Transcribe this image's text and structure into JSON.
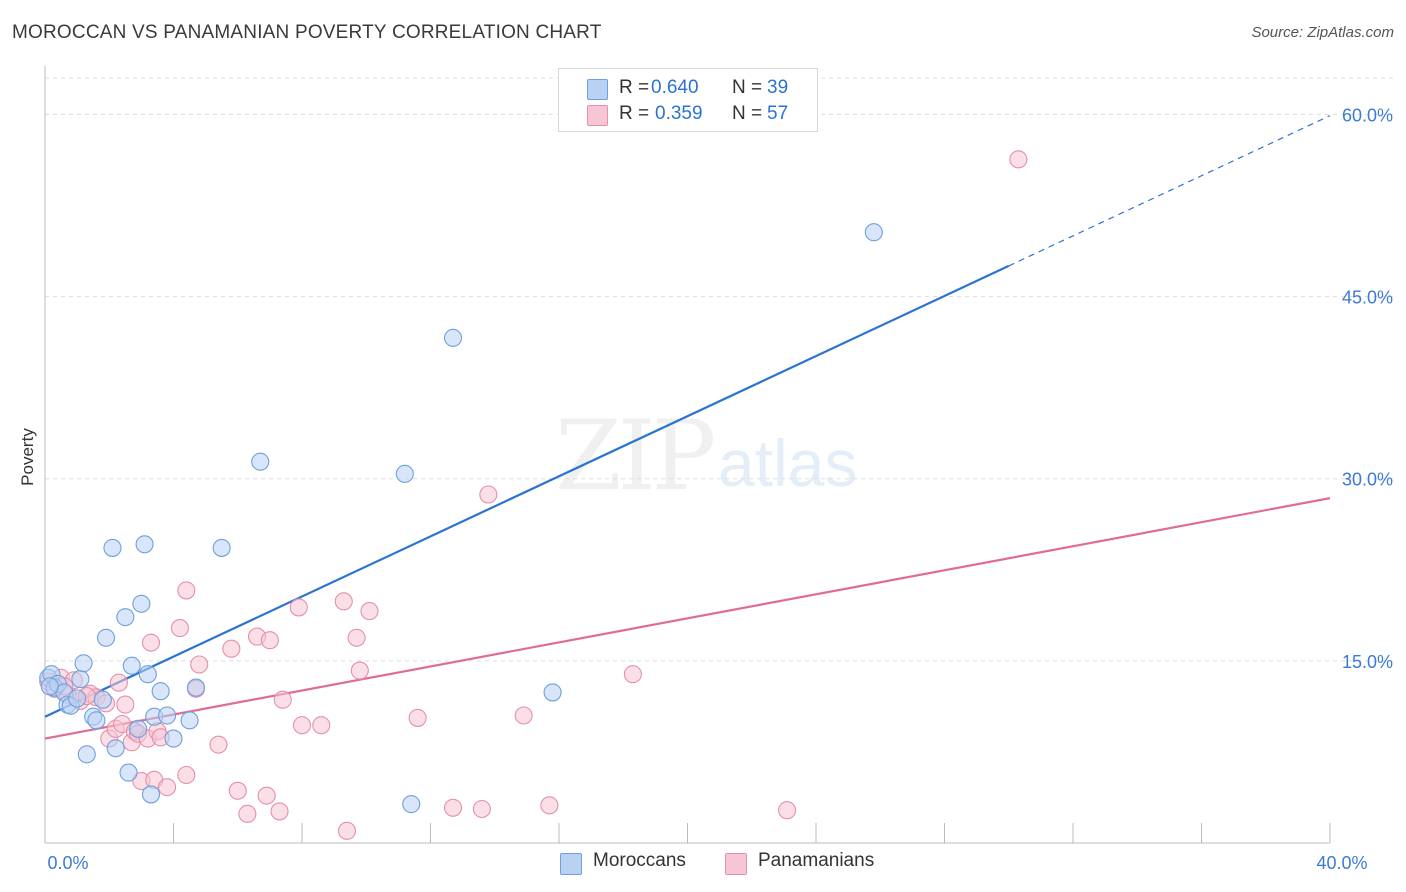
{
  "header": {
    "title": "MOROCCAN VS PANAMANIAN POVERTY CORRELATION CHART",
    "source": "Source: ZipAtlas.com"
  },
  "watermark": {
    "zip": "ZIP",
    "atlas": "atlas"
  },
  "legend": {
    "rows": [
      {
        "r_label": "R =",
        "r_value": "0.640",
        "n_label": "N =",
        "n_value": "39"
      },
      {
        "r_label": "R =",
        "r_value": "0.359",
        "n_label": "N =",
        "n_value": "57"
      }
    ]
  },
  "bottom_legend": {
    "moroccans": "Moroccans",
    "panamanians": "Panamanians"
  },
  "colors": {
    "blue_fill": "#b9d2f4",
    "blue_stroke": "#6f9fdc",
    "blue_line": "#2a74d0",
    "pink_fill": "#f7c5d4",
    "pink_stroke": "#e58fab",
    "pink_line": "#e06c94",
    "tick_label": "#3d7ad6",
    "grid": "#dddddd"
  },
  "chart_data": {
    "type": "scatter",
    "title": "MOROCCAN VS PANAMANIAN POVERTY CORRELATION CHART",
    "xlabel": "",
    "ylabel": "Poverty",
    "xlim": [
      0,
      40
    ],
    "ylim": [
      0,
      63
    ],
    "x_tick_labels": [
      {
        "value": 0,
        "label": "0.0%"
      },
      {
        "value": 40,
        "label": "40.0%"
      }
    ],
    "y_tick_labels": [
      {
        "value": 15,
        "label": "15.0%"
      },
      {
        "value": 30,
        "label": "30.0%"
      },
      {
        "value": 45,
        "label": "45.0%"
      },
      {
        "value": 60,
        "label": "60.0%"
      }
    ],
    "series": [
      {
        "name": "Moroccans",
        "r": 0.64,
        "n": 39,
        "trend": {
          "x_start": 0,
          "y_start": 10.4,
          "x_end": 40,
          "y_end": 59.9,
          "solid_until_x": 30
        },
        "points": [
          [
            0.1,
            13.6
          ],
          [
            0.2,
            13.9
          ],
          [
            0.3,
            12.8
          ],
          [
            0.4,
            13.1
          ],
          [
            0.6,
            12.4
          ],
          [
            0.7,
            11.4
          ],
          [
            0.8,
            11.3
          ],
          [
            1.0,
            11.9
          ],
          [
            1.1,
            13.5
          ],
          [
            1.2,
            14.8
          ],
          [
            1.3,
            7.3
          ],
          [
            1.5,
            10.4
          ],
          [
            1.6,
            10.1
          ],
          [
            1.8,
            11.8
          ],
          [
            1.9,
            16.9
          ],
          [
            2.1,
            24.3
          ],
          [
            2.2,
            7.8
          ],
          [
            2.5,
            18.6
          ],
          [
            2.6,
            5.8
          ],
          [
            2.7,
            14.6
          ],
          [
            2.9,
            9.4
          ],
          [
            3.0,
            19.7
          ],
          [
            3.1,
            24.6
          ],
          [
            3.2,
            13.9
          ],
          [
            3.3,
            4.0
          ],
          [
            3.4,
            10.4
          ],
          [
            3.6,
            12.5
          ],
          [
            3.8,
            10.5
          ],
          [
            4.0,
            8.6
          ],
          [
            4.5,
            10.1
          ],
          [
            4.7,
            12.8
          ],
          [
            5.5,
            24.3
          ],
          [
            6.7,
            31.4
          ],
          [
            11.2,
            30.4
          ],
          [
            11.4,
            3.2
          ],
          [
            12.7,
            41.6
          ],
          [
            15.8,
            12.4
          ],
          [
            25.8,
            50.3
          ],
          [
            0.15,
            12.9
          ]
        ]
      },
      {
        "name": "Panamanians",
        "r": 0.359,
        "n": 57,
        "trend": {
          "x_start": 0,
          "y_start": 8.6,
          "x_end": 40,
          "y_end": 28.4
        },
        "points": [
          [
            0.1,
            13.3
          ],
          [
            0.3,
            12.7
          ],
          [
            0.5,
            13.6
          ],
          [
            0.7,
            12.2
          ],
          [
            0.9,
            13.4
          ],
          [
            1.1,
            11.7
          ],
          [
            1.4,
            12.3
          ],
          [
            1.6,
            12.0
          ],
          [
            1.9,
            11.5
          ],
          [
            2.0,
            8.6
          ],
          [
            2.2,
            9.4
          ],
          [
            2.3,
            13.2
          ],
          [
            2.4,
            9.8
          ],
          [
            2.5,
            11.4
          ],
          [
            2.7,
            8.3
          ],
          [
            2.8,
            9.2
          ],
          [
            2.9,
            9.0
          ],
          [
            3.0,
            5.1
          ],
          [
            3.2,
            8.6
          ],
          [
            3.3,
            16.5
          ],
          [
            3.4,
            5.2
          ],
          [
            3.5,
            9.2
          ],
          [
            3.6,
            8.7
          ],
          [
            3.8,
            4.6
          ],
          [
            4.2,
            17.7
          ],
          [
            4.4,
            20.8
          ],
          [
            4.4,
            5.6
          ],
          [
            4.7,
            12.7
          ],
          [
            4.8,
            14.7
          ],
          [
            5.4,
            8.1
          ],
          [
            5.8,
            16.0
          ],
          [
            6.0,
            4.3
          ],
          [
            6.3,
            2.4
          ],
          [
            6.6,
            17.0
          ],
          [
            6.9,
            3.9
          ],
          [
            7.0,
            16.7
          ],
          [
            7.3,
            2.6
          ],
          [
            7.4,
            11.8
          ],
          [
            7.9,
            19.4
          ],
          [
            8.0,
            9.7
          ],
          [
            8.6,
            9.7
          ],
          [
            9.3,
            19.9
          ],
          [
            9.4,
            1.0
          ],
          [
            9.7,
            16.9
          ],
          [
            9.8,
            14.2
          ],
          [
            10.1,
            19.1
          ],
          [
            11.6,
            10.3
          ],
          [
            12.7,
            2.9
          ],
          [
            13.6,
            2.8
          ],
          [
            13.8,
            28.7
          ],
          [
            14.9,
            10.5
          ],
          [
            15.7,
            3.1
          ],
          [
            18.3,
            13.9
          ],
          [
            23.1,
            2.7
          ],
          [
            30.3,
            56.3
          ],
          [
            0.6,
            12.9
          ],
          [
            1.3,
            12.1
          ]
        ]
      }
    ]
  }
}
